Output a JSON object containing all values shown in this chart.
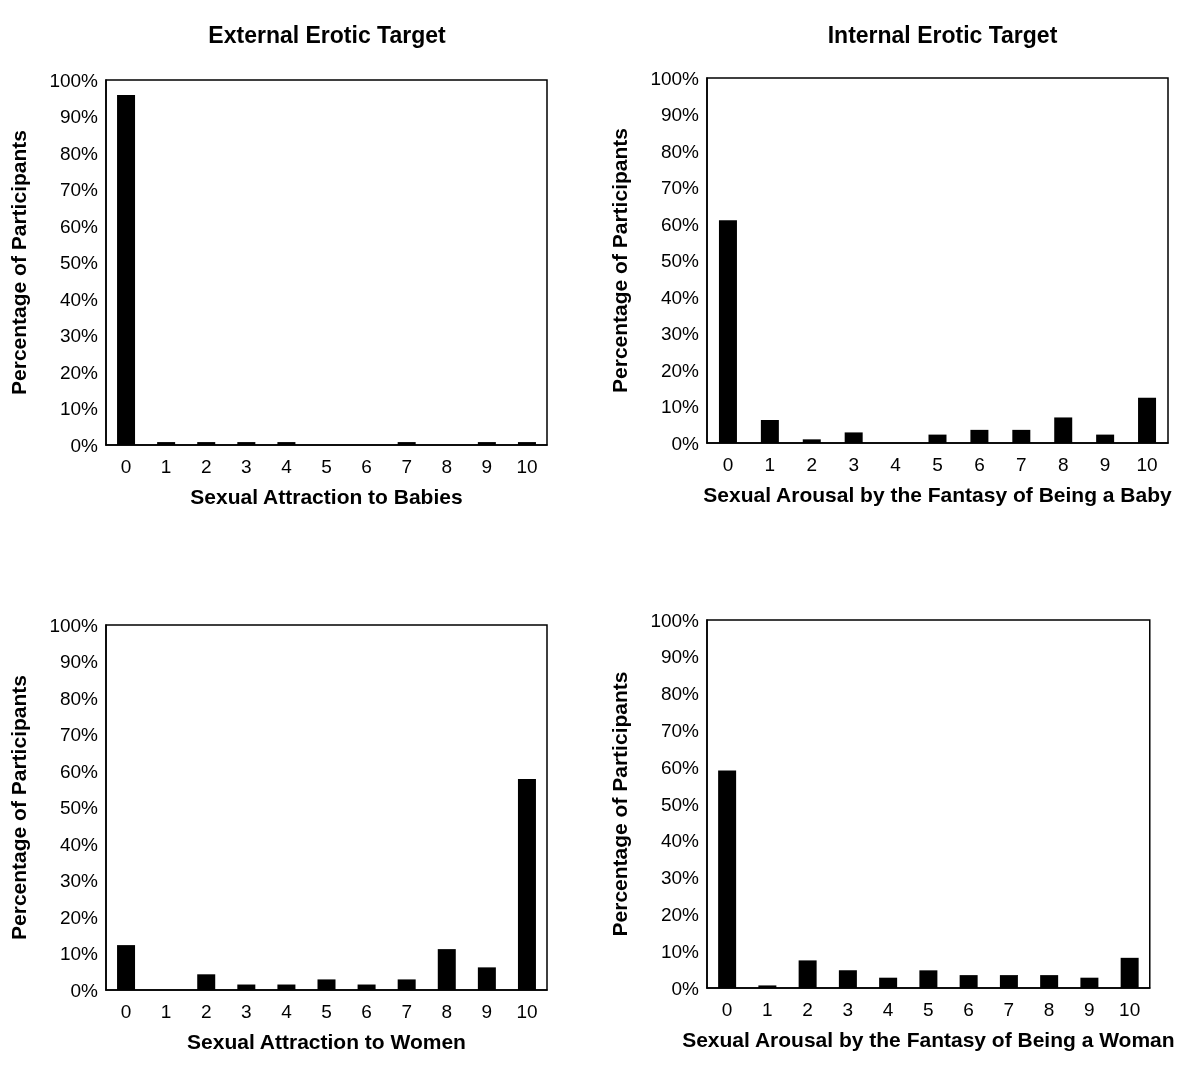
{
  "chart_data": [
    {
      "type": "bar",
      "title": "External Erotic Target",
      "xlabel": "Sexual Attraction to Babies",
      "ylabel": "Percentage of Participants",
      "categories": [
        "0",
        "1",
        "2",
        "3",
        "4",
        "5",
        "6",
        "7",
        "8",
        "9",
        "10"
      ],
      "color": "#000000",
      "values": [
        95.9,
        0.8,
        0.8,
        0.8,
        0.8,
        0,
        0,
        0.8,
        0,
        0.8,
        0.8
      ],
      "ylim": [
        0,
        100
      ],
      "yticks": [
        {
          "value": 0,
          "label": "0%"
        },
        {
          "value": 10,
          "label": "10%"
        },
        {
          "value": 20,
          "label": "20%"
        },
        {
          "value": 30,
          "label": "30%"
        },
        {
          "value": 40,
          "label": "40%"
        },
        {
          "value": 50,
          "label": "50%"
        },
        {
          "value": 60,
          "label": "60%"
        },
        {
          "value": 70,
          "label": "70%"
        },
        {
          "value": 80,
          "label": "80%"
        },
        {
          "value": 90,
          "label": "90%"
        },
        {
          "value": 100,
          "label": "100%"
        }
      ]
    },
    {
      "type": "bar",
      "title": "Internal Erotic Target",
      "xlabel": "Sexual Arousal by the Fantasy of Being a Baby",
      "ylabel": "Percentage of Participants",
      "categories": [
        "0",
        "1",
        "2",
        "3",
        "4",
        "5",
        "6",
        "7",
        "8",
        "9",
        "10"
      ],
      "color": "#000000",
      "values": [
        61,
        6.3,
        1,
        2.9,
        0,
        2.3,
        3.6,
        3.6,
        7,
        2.3,
        12.4
      ],
      "ylim": [
        0,
        100
      ],
      "yticks": [
        {
          "value": 0,
          "label": "0%"
        },
        {
          "value": 10,
          "label": "10%"
        },
        {
          "value": 20,
          "label": "20%"
        },
        {
          "value": 30,
          "label": "30%"
        },
        {
          "value": 40,
          "label": "40%"
        },
        {
          "value": 50,
          "label": "50%"
        },
        {
          "value": 60,
          "label": "60%"
        },
        {
          "value": 70,
          "label": "70%"
        },
        {
          "value": 80,
          "label": "80%"
        },
        {
          "value": 90,
          "label": "90%"
        },
        {
          "value": 100,
          "label": "100%"
        }
      ]
    },
    {
      "type": "bar",
      "xlabel": "Sexual Attraction to Women",
      "ylabel": "Percentage of Participants",
      "categories": [
        "0",
        "1",
        "2",
        "3",
        "4",
        "5",
        "6",
        "7",
        "8",
        "9",
        "10"
      ],
      "color": "#000000",
      "values": [
        12.3,
        0,
        4.3,
        1.5,
        1.5,
        2.9,
        1.5,
        2.9,
        11.2,
        6.2,
        57.8
      ],
      "ylim": [
        0,
        100
      ],
      "yticks": [
        {
          "value": 0,
          "label": "0%"
        },
        {
          "value": 10,
          "label": "10%"
        },
        {
          "value": 20,
          "label": "20%"
        },
        {
          "value": 30,
          "label": "30%"
        },
        {
          "value": 40,
          "label": "40%"
        },
        {
          "value": 50,
          "label": "50%"
        },
        {
          "value": 60,
          "label": "60%"
        },
        {
          "value": 70,
          "label": "70%"
        },
        {
          "value": 80,
          "label": "80%"
        },
        {
          "value": 90,
          "label": "90%"
        },
        {
          "value": 100,
          "label": "100%"
        }
      ]
    },
    {
      "type": "bar",
      "xlabel": "Sexual Arousal by the Fantasy of Being a Woman",
      "ylabel": "Percentage of Participants",
      "categories": [
        "0",
        "1",
        "2",
        "3",
        "4",
        "5",
        "6",
        "7",
        "8",
        "9",
        "10"
      ],
      "color": "#000000",
      "values": [
        59.1,
        0.7,
        7.5,
        4.8,
        2.8,
        4.8,
        3.5,
        3.5,
        3.5,
        2.8,
        8.2
      ],
      "ylim": [
        0,
        100
      ],
      "yticks": [
        {
          "value": 0,
          "label": "0%"
        },
        {
          "value": 10,
          "label": "10%"
        },
        {
          "value": 20,
          "label": "20%"
        },
        {
          "value": 30,
          "label": "30%"
        },
        {
          "value": 40,
          "label": "40%"
        },
        {
          "value": 50,
          "label": "50%"
        },
        {
          "value": 60,
          "label": "60%"
        },
        {
          "value": 70,
          "label": "70%"
        },
        {
          "value": 80,
          "label": "80%"
        },
        {
          "value": 90,
          "label": "90%"
        },
        {
          "value": 100,
          "label": "100%"
        }
      ]
    }
  ]
}
